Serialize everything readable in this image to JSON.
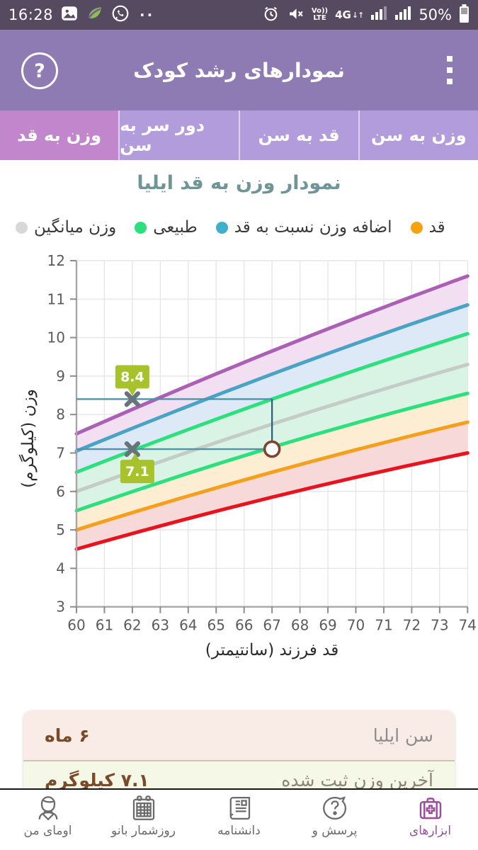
{
  "status_bar": {
    "time": "16:28",
    "volte_top": "Vo))",
    "volte_bottom": "LTE",
    "network": "4G",
    "battery_percent": "50%"
  },
  "header": {
    "title": "نمودارهای رشد کودک"
  },
  "tabs": [
    {
      "label": "وزن به قد",
      "selected": true
    },
    {
      "label": "دور سر به سن",
      "selected": false
    },
    {
      "label": "قد به سن",
      "selected": false
    },
    {
      "label": "وزن به سن",
      "selected": false
    }
  ],
  "chart_section": {
    "title": "نمودار وزن به قد ایلیا"
  },
  "legend": [
    {
      "label": "وزن میانگین",
      "color": "#d8d8d8"
    },
    {
      "label": "طبیعی",
      "color": "#2be07d"
    },
    {
      "label": "اضافه وزن نسبت به قد",
      "color": "#3fb0c9"
    },
    {
      "label": "قد",
      "color": "#f5a211"
    }
  ],
  "chart_data": {
    "type": "line",
    "title": "نمودار وزن به قد ایلیا",
    "xlabel": "قد فرزند (سانتیمتر)",
    "ylabel": "وزن (کیلوگرم)",
    "xlim": [
      60,
      74
    ],
    "ylim": [
      3,
      12
    ],
    "x_ticks": [
      60,
      61,
      62,
      63,
      64,
      65,
      66,
      67,
      68,
      69,
      70,
      71,
      72,
      73,
      74
    ],
    "y_ticks": [
      3,
      4,
      5,
      6,
      7,
      8,
      9,
      10,
      11,
      12
    ],
    "grid": true,
    "series": [
      {
        "name": "upper-limit-purple",
        "color": "#ab5fb5",
        "x": [
          60,
          67,
          74
        ],
        "values": [
          7.5,
          9.65,
          11.6
        ]
      },
      {
        "name": "overweight-for-height-blue",
        "color": "#48a3c4",
        "x": [
          60,
          67,
          74
        ],
        "values": [
          7.05,
          9.05,
          10.85
        ]
      },
      {
        "name": "normal-upper-green",
        "color": "#2be07d",
        "x": [
          60,
          67,
          74
        ],
        "values": [
          6.5,
          8.4,
          10.1
        ]
      },
      {
        "name": "mean-weight-gray",
        "color": "#c3ccc6",
        "x": [
          60,
          67,
          74
        ],
        "values": [
          6.0,
          7.75,
          9.3
        ]
      },
      {
        "name": "normal-lower-green",
        "color": "#2be07d",
        "x": [
          60,
          67,
          74
        ],
        "values": [
          5.5,
          7.15,
          8.55
        ]
      },
      {
        "name": "underweight-orange",
        "color": "#f5a01c",
        "x": [
          60,
          67,
          74
        ],
        "values": [
          5.0,
          6.5,
          7.8
        ]
      },
      {
        "name": "lower-limit-red",
        "color": "#e6141f",
        "x": [
          60,
          67,
          74
        ],
        "values": [
          4.5,
          5.85,
          7.0
        ]
      }
    ],
    "band_fills": [
      "#f2dff2",
      "#dde9f6",
      "#d9f4e5",
      "#d9f4e5",
      "#fdeed3",
      "#f8d9d9"
    ],
    "points": [
      {
        "x": 62,
        "y": 8.4,
        "label": "8.4"
      },
      {
        "x": 62,
        "y": 7.1,
        "label": "7.1"
      }
    ],
    "highlight_point": {
      "x": 67,
      "y": 7.1
    },
    "ref_lines": {
      "h": [
        8.4,
        7.1
      ],
      "x_end": 67,
      "v_x": 67,
      "color": "#4f93ab",
      "v_color": "#2c5d77"
    },
    "badge_color": "#a7c22b",
    "marker_color": "#67757b",
    "circle_color": "#7e422f",
    "legend_position": "top"
  },
  "info_card": {
    "rows": [
      {
        "label": "سن ایلیا",
        "value": "۶ ماه"
      },
      {
        "label": "آخرین وزن ثبت شده",
        "value": "۷.۱ کیلوگرم"
      }
    ]
  },
  "bottom_nav": [
    {
      "label": "اومای من",
      "icon": "avatar-icon",
      "active": false
    },
    {
      "label": "روزشمار بانو",
      "icon": "calendar-icon",
      "active": false
    },
    {
      "label": "دانشنامه",
      "icon": "encyclopedia-icon",
      "active": false
    },
    {
      "label": "پرسش و",
      "icon": "question-icon",
      "active": false
    },
    {
      "label": "ابزارهای",
      "icon": "tools-icon",
      "active": true
    }
  ],
  "colors": {
    "status_bar_bg": "#564a60",
    "header_bg": "#8e7bb4",
    "tab_bg": "#b39cdc",
    "tab_selected_bg": "#c286cc",
    "chart_title": "#6f9596",
    "active_nav": "#9b4f9b",
    "card_row1_bg": "#f9ebe6",
    "card_row2_bg": "#f5f8e6",
    "card_value_brown": "#7a4b28"
  }
}
